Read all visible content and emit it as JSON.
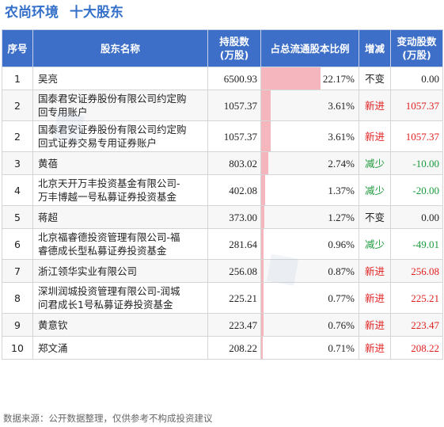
{
  "title": {
    "company": "农尚环境",
    "section": "十大股东"
  },
  "columns": {
    "no": "序号",
    "name": "股东名称",
    "shares_l1": "持股数",
    "shares_l2": "(万股)",
    "ratio": "占总流通股本比例",
    "change": "增减",
    "delta_l1": "变动股数",
    "delta_l2": "(万股)"
  },
  "rows": [
    {
      "no": "1",
      "name_l1": "吴亮",
      "name_l2": "",
      "shares": "6500.93",
      "ratio_text": "22.17%",
      "ratio": 22.17,
      "change": "不变",
      "dir": "same",
      "delta": "0.00"
    },
    {
      "no": "2",
      "name_l1": "国泰君安证券股份有限公司约定购",
      "name_l2": "回专用账户",
      "shares": "1057.37",
      "ratio_text": "3.61%",
      "ratio": 3.61,
      "change": "新进",
      "dir": "up",
      "delta": "1057.37"
    },
    {
      "no": "2",
      "name_l1": "国泰君安证券股份有限公司约定购",
      "name_l2": "回式证券交易专用证券账户",
      "shares": "1057.37",
      "ratio_text": "3.61%",
      "ratio": 3.61,
      "change": "新进",
      "dir": "up",
      "delta": "1057.37"
    },
    {
      "no": "3",
      "name_l1": "黄蓓",
      "name_l2": "",
      "shares": "803.02",
      "ratio_text": "2.74%",
      "ratio": 2.74,
      "change": "减少",
      "dir": "down",
      "delta": "-10.00"
    },
    {
      "no": "4",
      "name_l1": "北京天开万丰投资基金有限公司-",
      "name_l2": "万丰博越一号私募证券投资基金",
      "shares": "402.08",
      "ratio_text": "1.37%",
      "ratio": 1.37,
      "change": "减少",
      "dir": "down",
      "delta": "-20.00"
    },
    {
      "no": "5",
      "name_l1": "蒋超",
      "name_l2": "",
      "shares": "373.00",
      "ratio_text": "1.27%",
      "ratio": 1.27,
      "change": "不变",
      "dir": "same",
      "delta": "0.00"
    },
    {
      "no": "6",
      "name_l1": "北京福睿德投资管理有限公司-福",
      "name_l2": "睿德成长型私募证券投资基金",
      "shares": "281.64",
      "ratio_text": "0.96%",
      "ratio": 0.96,
      "change": "减少",
      "dir": "down",
      "delta": "-49.01"
    },
    {
      "no": "7",
      "name_l1": "浙江领华实业有限公司",
      "name_l2": "",
      "shares": "256.08",
      "ratio_text": "0.87%",
      "ratio": 0.87,
      "change": "新进",
      "dir": "up",
      "delta": "256.08"
    },
    {
      "no": "8",
      "name_l1": "深圳润城投资管理有限公司-润城",
      "name_l2": "问君成长1号私募证券投资基金",
      "shares": "225.21",
      "ratio_text": "0.77%",
      "ratio": 0.77,
      "change": "新进",
      "dir": "up",
      "delta": "225.21"
    },
    {
      "no": "9",
      "name_l1": "黄意钦",
      "name_l2": "",
      "shares": "223.47",
      "ratio_text": "0.76%",
      "ratio": 0.76,
      "change": "新进",
      "dir": "up",
      "delta": "223.47"
    },
    {
      "no": "10",
      "name_l1": "郑文涌",
      "name_l2": "",
      "shares": "208.22",
      "ratio_text": "0.71%",
      "ratio": 0.71,
      "change": "新进",
      "dir": "up",
      "delta": "208.22"
    }
  ],
  "footer": "数据来源：公开数据整理，仅供参考不构成投资建议",
  "colors": {
    "title": "#3470c9",
    "header_bg": "#3d6fc8",
    "bar": "#f5a9b3",
    "up": "#e02020",
    "down": "#1a9a3a"
  }
}
